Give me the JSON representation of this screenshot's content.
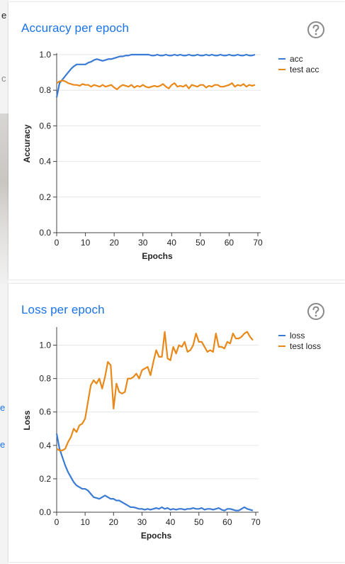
{
  "background": {
    "chars": [
      "e",
      "c",
      "e",
      "e"
    ]
  },
  "help_icon": "help-circle-icon",
  "colors": {
    "train": "#3a7bd5",
    "test": "#e8891a",
    "title": "#1a73e8"
  },
  "chart_data": [
    {
      "type": "line",
      "title": "Accuracy per epoch",
      "xlabel": "Epochs",
      "ylabel": "Accuracy",
      "xlim": [
        0,
        70
      ],
      "ylim": [
        0,
        1.0
      ],
      "xticks": [
        "0",
        "10",
        "20",
        "30",
        "40",
        "50",
        "60",
        "70"
      ],
      "yticks": [
        "0.0",
        "0.2",
        "0.4",
        "0.6",
        "0.8",
        "1.0"
      ],
      "legend": "top-right",
      "series": [
        {
          "name": "acc",
          "color": "#3a7bd5",
          "values": [
            0.76,
            0.84,
            0.86,
            0.88,
            0.9,
            0.92,
            0.935,
            0.945,
            0.945,
            0.945,
            0.945,
            0.955,
            0.96,
            0.97,
            0.975,
            0.97,
            0.965,
            0.97,
            0.975,
            0.975,
            0.98,
            0.985,
            0.99,
            0.99,
            0.995,
            0.995,
            1.0,
            1.0,
            1.0,
            1.0,
            1.0,
            1.0,
            1.0,
            0.995,
            0.995,
            1.0,
            0.995,
            0.995,
            1.0,
            0.995,
            0.995,
            1.0,
            0.995,
            1.0,
            0.995,
            0.995,
            1.0,
            0.995,
            0.995,
            1.0,
            0.995,
            0.995,
            1.0,
            0.995,
            1.0,
            0.995,
            0.995,
            1.0,
            0.995,
            0.995,
            1.0,
            0.995,
            0.995,
            1.0,
            0.995,
            0.995,
            1.0,
            0.995,
            0.995,
            1.0
          ]
        },
        {
          "name": "test acc",
          "color": "#e8891a",
          "values": [
            0.84,
            0.85,
            0.855,
            0.85,
            0.84,
            0.835,
            0.83,
            0.83,
            0.825,
            0.835,
            0.83,
            0.83,
            0.82,
            0.83,
            0.825,
            0.82,
            0.83,
            0.82,
            0.825,
            0.83,
            0.815,
            0.805,
            0.82,
            0.83,
            0.825,
            0.82,
            0.83,
            0.815,
            0.825,
            0.82,
            0.83,
            0.82,
            0.815,
            0.82,
            0.825,
            0.82,
            0.825,
            0.835,
            0.82,
            0.81,
            0.83,
            0.84,
            0.82,
            0.825,
            0.82,
            0.83,
            0.81,
            0.83,
            0.825,
            0.82,
            0.83,
            0.83,
            0.815,
            0.825,
            0.82,
            0.83,
            0.83,
            0.82,
            0.82,
            0.825,
            0.83,
            0.84,
            0.82,
            0.83,
            0.825,
            0.835,
            0.82,
            0.83,
            0.825,
            0.83
          ]
        }
      ]
    },
    {
      "type": "line",
      "title": "Loss per epoch",
      "xlabel": "Epochs",
      "ylabel": "Loss",
      "xlim": [
        0,
        70
      ],
      "ylim": [
        0,
        1.1
      ],
      "xticks": [
        "0",
        "10",
        "20",
        "30",
        "40",
        "50",
        "60",
        "70"
      ],
      "yticks": [
        "0.0",
        "0.2",
        "0.4",
        "0.6",
        "0.8",
        "1.0"
      ],
      "legend": "top-right",
      "series": [
        {
          "name": "loss",
          "color": "#3a7bd5",
          "values": [
            0.47,
            0.38,
            0.33,
            0.28,
            0.24,
            0.21,
            0.18,
            0.16,
            0.15,
            0.14,
            0.14,
            0.13,
            0.11,
            0.09,
            0.085,
            0.08,
            0.09,
            0.1,
            0.09,
            0.08,
            0.08,
            0.07,
            0.07,
            0.06,
            0.05,
            0.04,
            0.03,
            0.03,
            0.025,
            0.02,
            0.02,
            0.015,
            0.02,
            0.015,
            0.02,
            0.025,
            0.02,
            0.03,
            0.02,
            0.025,
            0.015,
            0.02,
            0.015,
            0.02,
            0.02,
            0.015,
            0.02,
            0.02,
            0.025,
            0.02,
            0.02,
            0.025,
            0.015,
            0.02,
            0.02,
            0.015,
            0.02,
            0.025,
            0.015,
            0.01,
            0.02,
            0.02,
            0.015,
            0.01,
            0.01,
            0.02,
            0.03,
            0.02,
            0.015,
            0.01
          ]
        },
        {
          "name": "test loss",
          "color": "#e8891a",
          "values": [
            0.38,
            0.37,
            0.37,
            0.38,
            0.42,
            0.45,
            0.5,
            0.48,
            0.52,
            0.53,
            0.56,
            0.66,
            0.76,
            0.79,
            0.77,
            0.8,
            0.74,
            0.81,
            0.9,
            0.88,
            0.62,
            0.77,
            0.72,
            0.71,
            0.72,
            0.8,
            0.8,
            0.81,
            0.83,
            0.8,
            0.85,
            0.86,
            0.87,
            0.82,
            0.9,
            0.97,
            0.93,
            0.93,
            1.08,
            0.92,
            0.91,
            0.99,
            0.95,
            1.0,
            0.99,
            1.02,
            0.96,
            0.97,
            1.0,
            1.07,
            1.02,
            1.02,
            0.99,
            0.96,
            0.97,
            0.96,
            1.07,
            0.99,
            0.99,
            0.98,
            1.02,
            1.01,
            1.07,
            1.04,
            1.04,
            1.05,
            1.07,
            1.08,
            1.05,
            1.03
          ]
        }
      ]
    }
  ]
}
